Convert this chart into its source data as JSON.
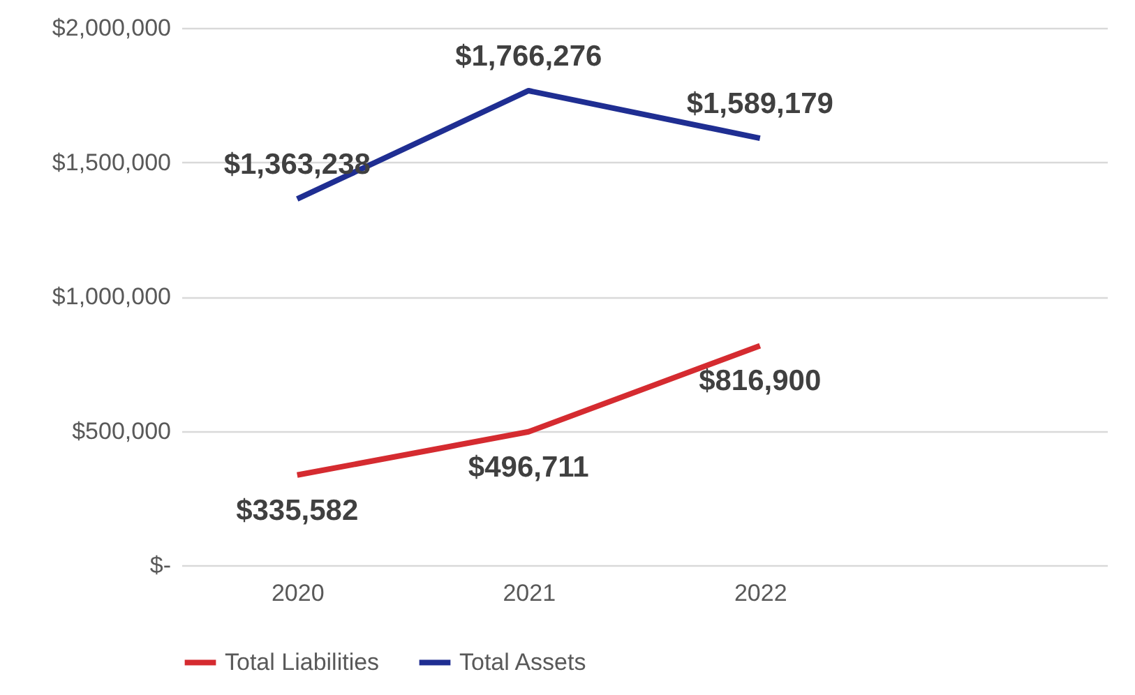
{
  "chart_data": {
    "type": "line",
    "categories": [
      "2020",
      "2021",
      "2022",
      null
    ],
    "series": [
      {
        "name": "Total Liabilities",
        "color": "#d52b30",
        "values": [
          335582,
          496711,
          816900,
          null
        ],
        "value_labels": [
          "$335,582",
          "$496,711",
          "$816,900",
          null
        ]
      },
      {
        "name": "Total Assets",
        "color": "#1f2e92",
        "values": [
          1363238,
          1766276,
          1589179,
          null
        ],
        "value_labels": [
          "$1,363,238",
          "$1,766,276",
          "$1,589,179",
          null
        ]
      }
    ],
    "ylim": [
      0,
      2000000
    ],
    "yticks": [
      {
        "value": 0,
        "label": "$-"
      },
      {
        "value": 500000,
        "label": "$500,000"
      },
      {
        "value": 1000000,
        "label": "$1,000,000"
      },
      {
        "value": 1500000,
        "label": "$1,500,000"
      },
      {
        "value": 2000000,
        "label": "$2,000,000"
      }
    ],
    "grid": "y",
    "legend": "bottom"
  }
}
